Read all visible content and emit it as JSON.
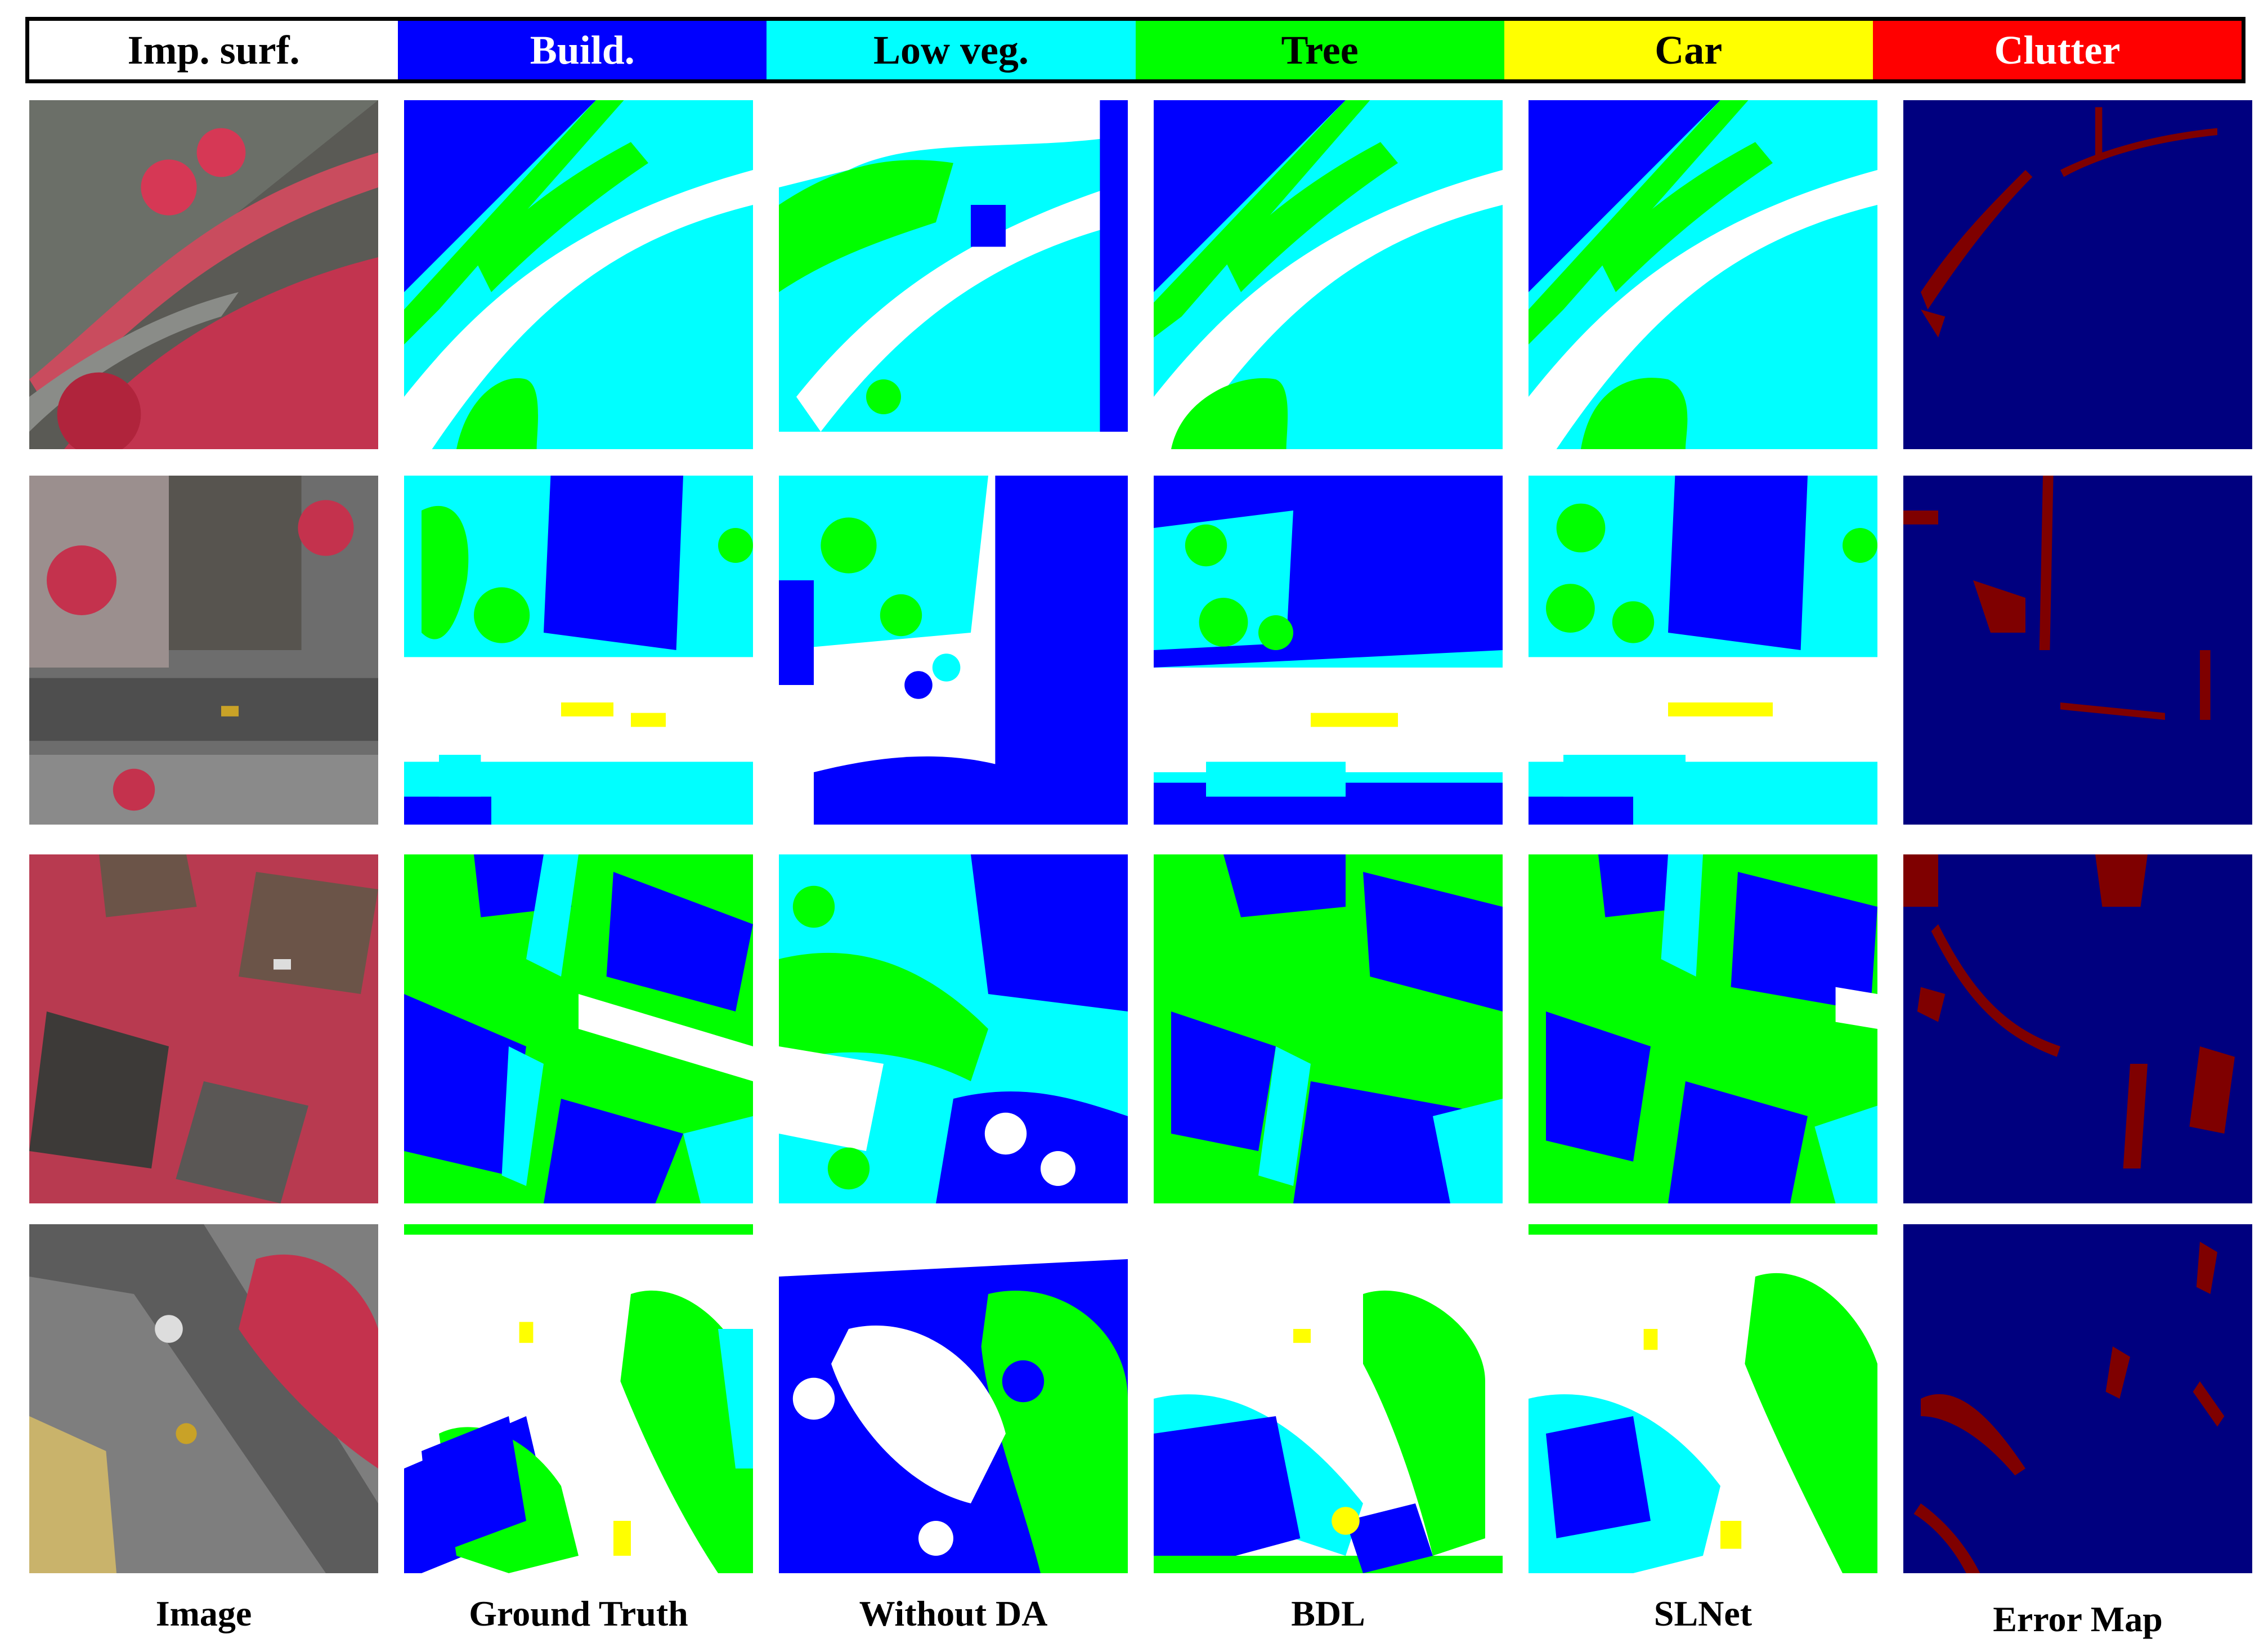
{
  "legend": [
    {
      "label": "Imp. surf.",
      "bg": "#ffffff",
      "fg": "#000000"
    },
    {
      "label": "Build.",
      "bg": "#0000ff",
      "fg": "#ffffff"
    },
    {
      "label": "Low veg.",
      "bg": "#00ffff",
      "fg": "#000000"
    },
    {
      "label": "Tree",
      "bg": "#00ff00",
      "fg": "#000000"
    },
    {
      "label": "Car",
      "bg": "#ffff00",
      "fg": "#000000"
    },
    {
      "label": "Clutter",
      "bg": "#ff0000",
      "fg": "#ffffff"
    }
  ],
  "columns": [
    "Image",
    "Ground Truth",
    "Without DA",
    "BDL",
    "SLNet",
    "Error Map"
  ],
  "colors": {
    "imp": "#ffffff",
    "build": "#0000ff",
    "lowveg": "#00ffff",
    "tree": "#00ff00",
    "car": "#ffff00",
    "error_bg": "#00007f",
    "error_fg": "#7f0000"
  }
}
